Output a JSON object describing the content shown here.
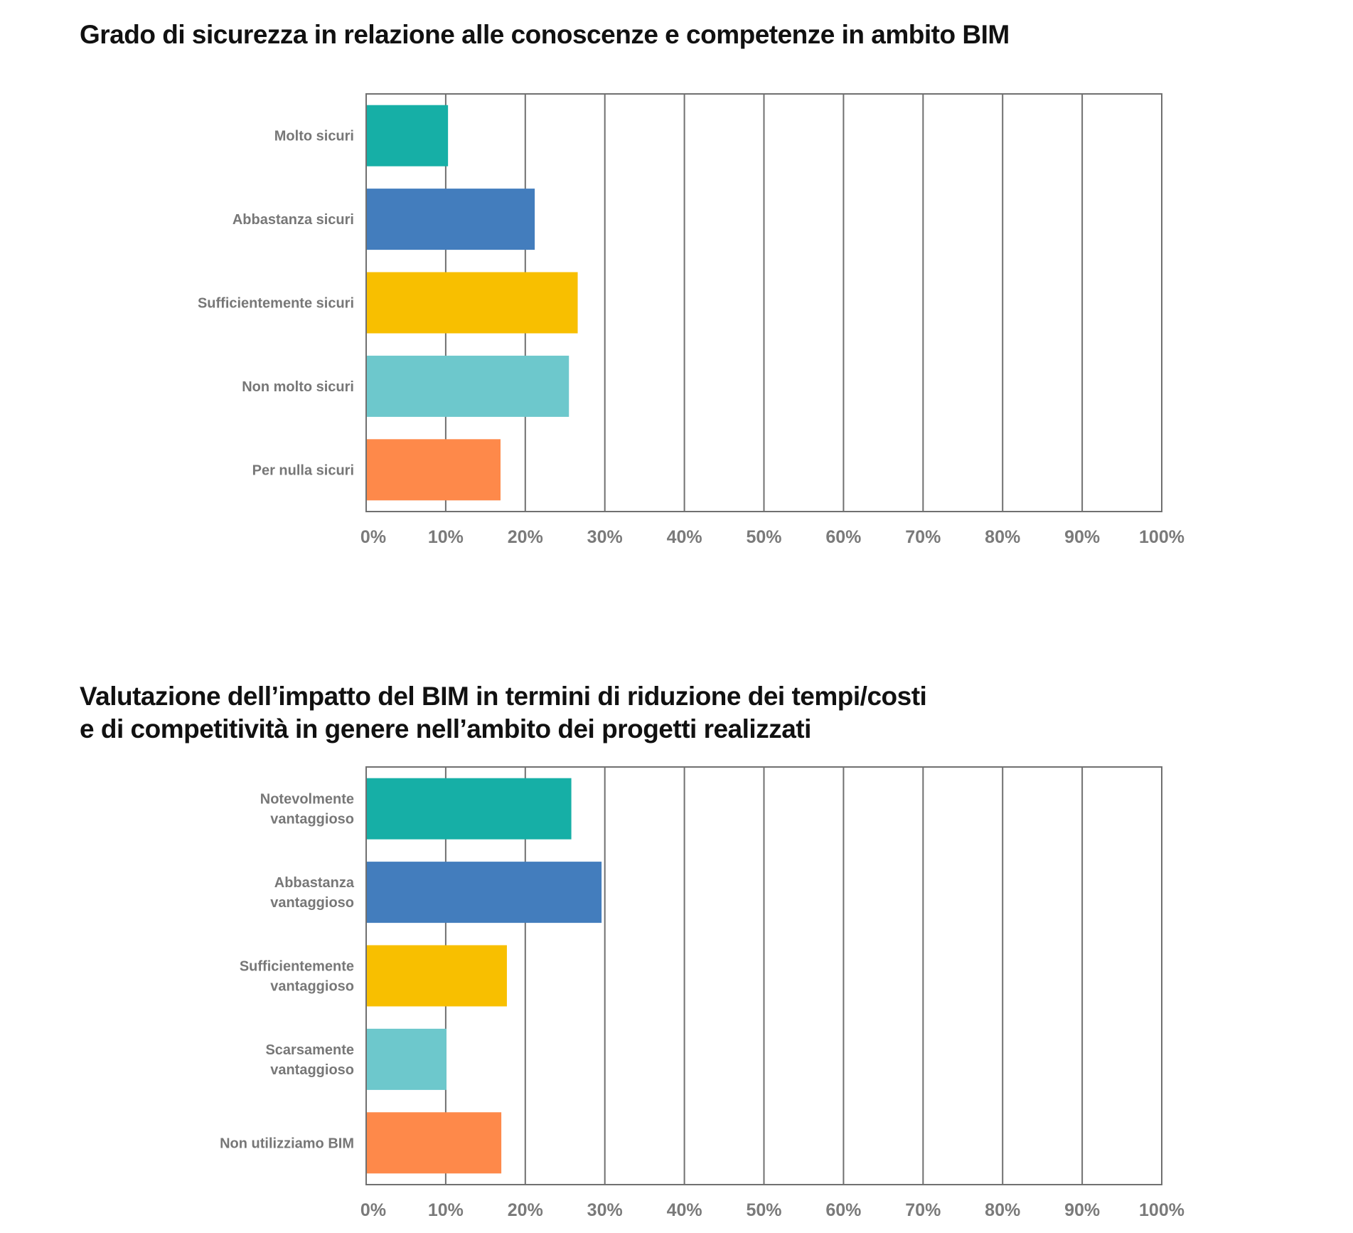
{
  "chart_data": [
    {
      "type": "bar",
      "orientation": "horizontal",
      "title": "Grado di sicurezza in relazione alle conoscenze e competenze in ambito BIM",
      "categories": [
        [
          "Molto sicuri"
        ],
        [
          "Abbastanza sicuri"
        ],
        [
          "Sufficientemente sicuri"
        ],
        [
          "Non molto sicuri"
        ],
        [
          "Per nulla sicuri"
        ]
      ],
      "values": [
        10.2,
        21.1,
        26.5,
        25.4,
        16.8
      ],
      "colors": [
        "#16afa6",
        "#437dbd",
        "#f8bf00",
        "#6dc8cc",
        "#fe894a"
      ],
      "xlim": [
        0,
        100
      ],
      "xticks": [
        "0%",
        "10%",
        "20%",
        "30%",
        "40%",
        "50%",
        "60%",
        "70%",
        "80%",
        "90%",
        "100%"
      ],
      "grid": true
    },
    {
      "type": "bar",
      "orientation": "horizontal",
      "title_lines": [
        "Valutazione dell’impatto del BIM in termini di riduzione dei tempi/costi",
        "e di competitività in genere nell’ambito dei progetti realizzati"
      ],
      "categories": [
        [
          "Notevolmente",
          "vantaggioso"
        ],
        [
          "Abbastanza",
          "vantaggioso"
        ],
        [
          "Sufficientemente",
          "vantaggioso"
        ],
        [
          "Scarsamente",
          "vantaggioso"
        ],
        [
          "Non utilizziamo BIM"
        ]
      ],
      "values": [
        25.7,
        29.5,
        17.6,
        10.0,
        16.9
      ],
      "colors": [
        "#16afa6",
        "#437dbd",
        "#f8bf00",
        "#6dc8cc",
        "#fe894a"
      ],
      "xlim": [
        0,
        100
      ],
      "xticks": [
        "0%",
        "10%",
        "20%",
        "30%",
        "40%",
        "50%",
        "60%",
        "70%",
        "80%",
        "90%",
        "100%"
      ],
      "grid": true
    }
  ]
}
